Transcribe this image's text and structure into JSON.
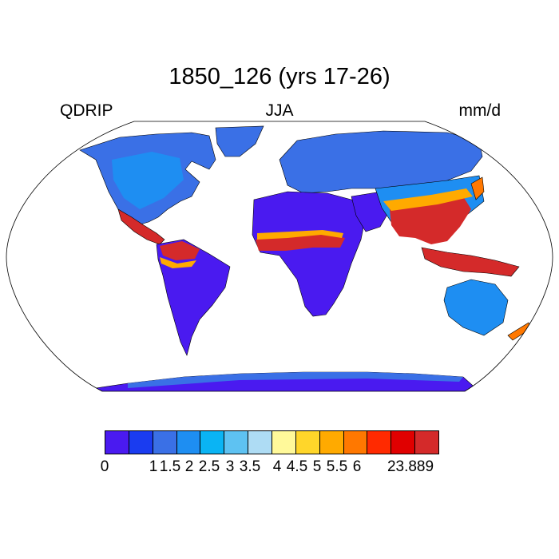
{
  "title": "1850_126 (yrs 17-26)",
  "subtitle_left": "QDRIP",
  "subtitle_center": "JJA",
  "subtitle_right": "mm/d",
  "colorbar": {
    "colors": [
      "#4a1af0",
      "#1a3cf0",
      "#3a70e6",
      "#1e8ef2",
      "#0ab4f4",
      "#5ec2f2",
      "#aedcf4",
      "#fff99a",
      "#ffd62a",
      "#ffaa00",
      "#ff7800",
      "#ff2a00",
      "#e00000",
      "#d42a2a"
    ],
    "labels": [
      "0",
      "1",
      "1.5",
      "2",
      "2.5",
      "3",
      "3.5",
      "4",
      "4.5",
      "5",
      "5.5",
      "6",
      "23.889"
    ]
  }
}
